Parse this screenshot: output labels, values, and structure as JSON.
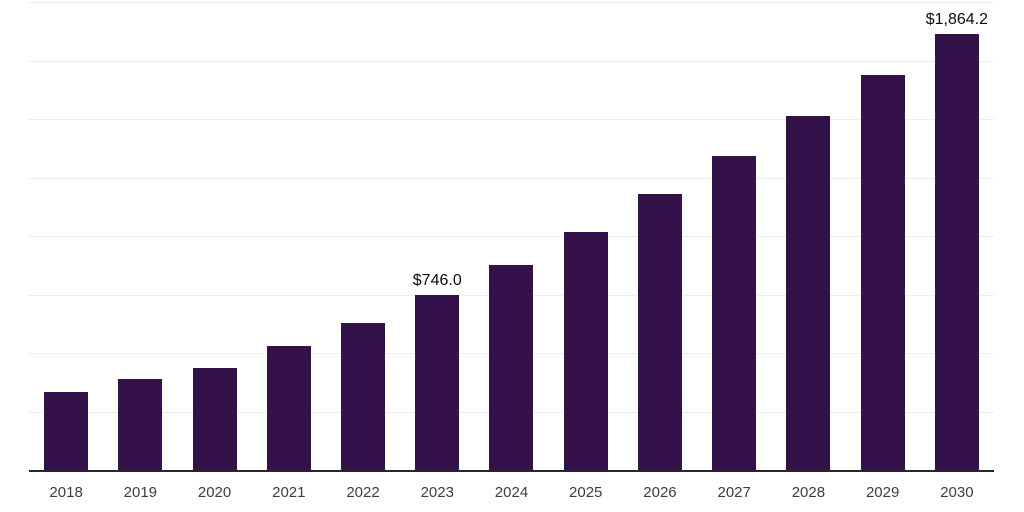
{
  "chart_data": {
    "type": "bar",
    "title": "",
    "xlabel": "",
    "ylabel": "",
    "categories": [
      "2018",
      "2019",
      "2020",
      "2021",
      "2022",
      "2023",
      "2024",
      "2025",
      "2026",
      "2027",
      "2028",
      "2029",
      "2030"
    ],
    "values": [
      333,
      389,
      435,
      530,
      629,
      746.0,
      878,
      1019,
      1178,
      1340,
      1515,
      1687,
      1864.2
    ],
    "bar_labels": [
      "",
      "",
      "",
      "",
      "",
      "$746.0",
      "",
      "",
      "",
      "",
      "",
      "",
      "$1,864.2"
    ],
    "ylim": [
      0,
      2000
    ],
    "grid_interval": 250,
    "grid": "horizontal",
    "legend": "none",
    "y_axis_tick_labels_visible": false
  },
  "style": {
    "bar_color": "#33124A",
    "axis_line_color": "#262626",
    "gridline_color": "#ededed",
    "data_label_color": "#0d0d0d",
    "tick_label_color": "#3d3d3d",
    "background_color": "#ffffff"
  }
}
